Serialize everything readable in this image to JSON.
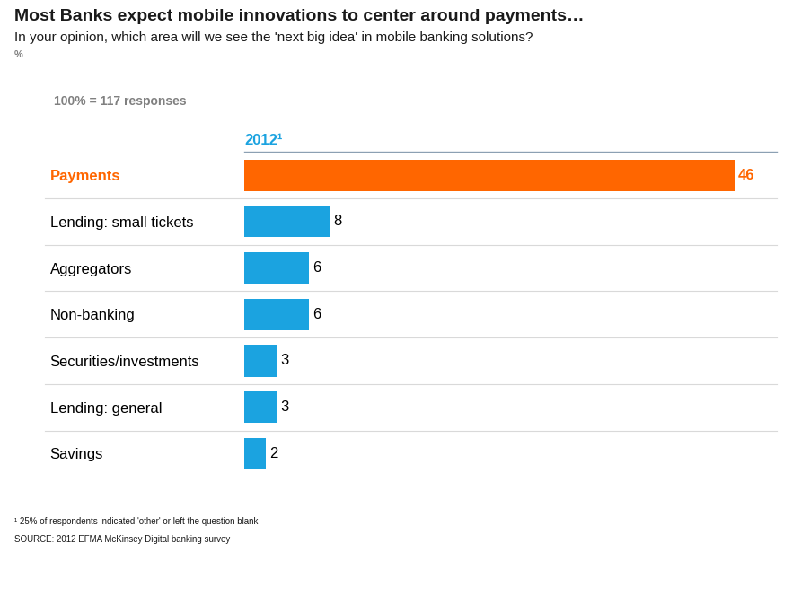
{
  "chart_data": {
    "type": "bar",
    "orientation": "horizontal",
    "title": "Most Banks expect mobile innovations to center around payments…",
    "subtitle": "In your opinion, which area will we see the 'next big idea' in mobile banking solutions?",
    "annotations": {
      "unit": "%",
      "base": "100% = 117 responses",
      "series": "2012¹",
      "footnote": "¹ 25% of respondents indicated 'other' or left the question blank",
      "source": "SOURCE: 2012 EFMA McKinsey Digital banking survey"
    },
    "categories": [
      "Payments",
      "Lending: small tickets",
      "Aggregators",
      "Non-banking",
      "Securities/investments",
      "Lending: general",
      "Savings"
    ],
    "values": [
      46,
      8,
      6,
      6,
      3,
      3,
      2
    ],
    "colors": [
      "#ff6600",
      "#1ba3e0",
      "#1ba3e0",
      "#1ba3e0",
      "#1ba3e0",
      "#1ba3e0",
      "#1ba3e0"
    ],
    "xlim": [
      0,
      50
    ],
    "data_labels": true,
    "tick_labels": "y",
    "grid": false
  }
}
